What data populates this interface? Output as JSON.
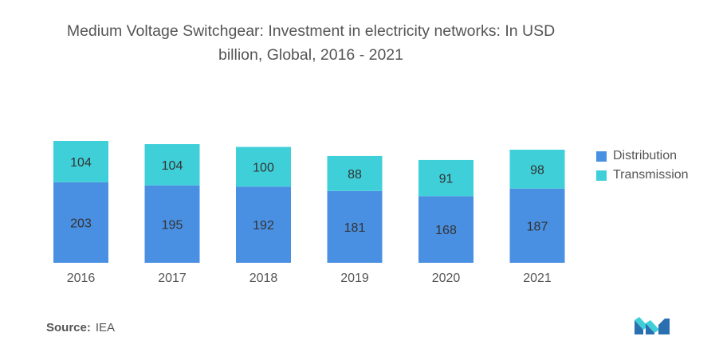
{
  "title_line1": "Medium Voltage Switchgear: Investment in electricity networks: In USD",
  "title_line2": "billion, Global, 2016 - 2021",
  "source_label": "Source:",
  "source_value": "IEA",
  "colors": {
    "distribution": "#4a90e2",
    "transmission": "#3fcfd8",
    "text": "#555555",
    "label": "#333333"
  },
  "logo_icon": "mordor-intelligence-logo-icon",
  "chart_data": {
    "type": "bar",
    "stacked": true,
    "categories": [
      "2016",
      "2017",
      "2018",
      "2019",
      "2020",
      "2021"
    ],
    "series": [
      {
        "name": "Distribution",
        "values": [
          203,
          195,
          192,
          181,
          168,
          187
        ]
      },
      {
        "name": "Transmission",
        "values": [
          104,
          104,
          100,
          88,
          91,
          98
        ]
      }
    ],
    "title": "Medium Voltage Switchgear: Investment in electricity networks: In USD billion, Global, 2016 - 2021",
    "xlabel": "",
    "ylabel": "",
    "ylim": [
      0,
      310
    ],
    "grid": false,
    "legend": "right",
    "data_labels": true
  }
}
